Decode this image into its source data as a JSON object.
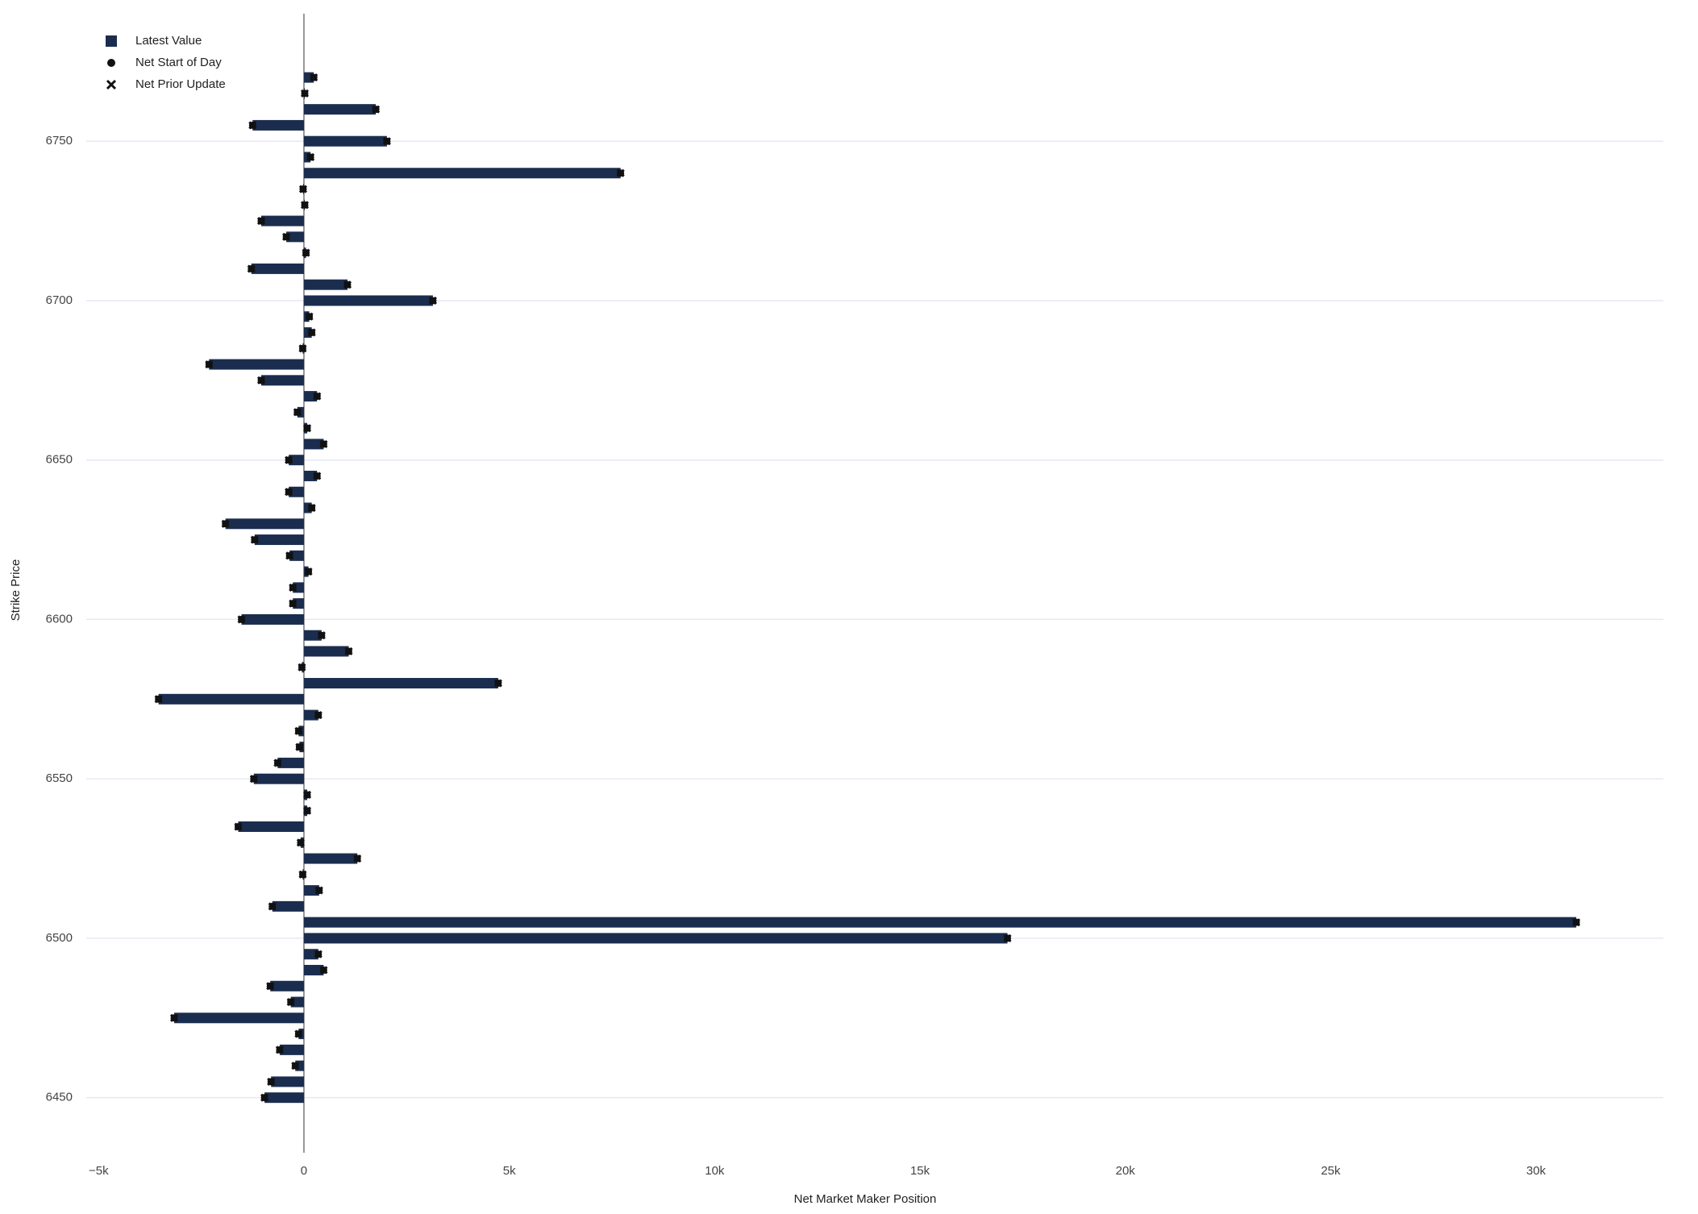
{
  "chart_data": {
    "type": "hbar",
    "x_label": "Net Market Maker Position",
    "y_label": "Strike Price",
    "y": [
      6770,
      6765,
      6760,
      6755,
      6750,
      6745,
      6740,
      6735,
      6730,
      6725,
      6720,
      6715,
      6710,
      6705,
      6700,
      6695,
      6690,
      6685,
      6680,
      6675,
      6670,
      6665,
      6660,
      6655,
      6650,
      6645,
      6640,
      6635,
      6630,
      6625,
      6620,
      6615,
      6610,
      6605,
      6600,
      6595,
      6590,
      6585,
      6580,
      6575,
      6570,
      6565,
      6560,
      6555,
      6550,
      6545,
      6540,
      6535,
      6530,
      6525,
      6520,
      6515,
      6510,
      6505,
      6500,
      6495,
      6490,
      6485,
      6480,
      6475,
      6470,
      6465,
      6460,
      6455,
      6450
    ],
    "series": [
      {
        "name": "Latest Value",
        "marker": "bar",
        "color": "#1b2d4e",
        "values": [
          240,
          20,
          1750,
          -1250,
          2020,
          160,
          7710,
          -20,
          20,
          -1040,
          -430,
          50,
          -1280,
          1060,
          3140,
          130,
          190,
          -30,
          -2310,
          -1040,
          320,
          -160,
          80,
          480,
          -370,
          320,
          -370,
          190,
          -1910,
          -1200,
          -350,
          110,
          -270,
          -270,
          -1520,
          430,
          1090,
          -50,
          4730,
          -3540,
          350,
          -130,
          -110,
          -640,
          -1220,
          80,
          80,
          -1600,
          -80,
          1300,
          -30,
          370,
          -770,
          30980,
          17130,
          350,
          480,
          -820,
          -320,
          -3160,
          -130,
          -590,
          -210,
          -800,
          -960
        ]
      },
      {
        "name": "Net Start of Day",
        "marker": "circle",
        "color": "#111111",
        "values": [
          240,
          20,
          1750,
          -1250,
          2020,
          160,
          7710,
          -20,
          20,
          -1040,
          -430,
          50,
          -1280,
          1060,
          3140,
          130,
          190,
          -30,
          -2310,
          -1040,
          320,
          -160,
          80,
          480,
          -370,
          320,
          -370,
          190,
          -1910,
          -1200,
          -350,
          110,
          -270,
          -270,
          -1520,
          430,
          1090,
          -50,
          4730,
          -3540,
          350,
          -130,
          -110,
          -640,
          -1220,
          80,
          80,
          -1600,
          -80,
          1300,
          -30,
          370,
          -770,
          30980,
          17130,
          350,
          480,
          -820,
          -320,
          -3160,
          -130,
          -590,
          -210,
          -800,
          -960
        ]
      },
      {
        "name": "Net Prior Update",
        "marker": "x",
        "color": "#111111",
        "values": [
          240,
          20,
          1750,
          -1250,
          2020,
          160,
          7710,
          -20,
          20,
          -1040,
          -430,
          50,
          -1280,
          1060,
          3140,
          130,
          190,
          -30,
          -2310,
          -1040,
          320,
          -160,
          80,
          480,
          -370,
          320,
          -370,
          190,
          -1910,
          -1200,
          -350,
          110,
          -270,
          -270,
          -1520,
          430,
          1090,
          -50,
          4730,
          -3540,
          350,
          -130,
          -110,
          -640,
          -1220,
          80,
          80,
          -1600,
          -80,
          1300,
          -30,
          370,
          -770,
          30980,
          17130,
          350,
          480,
          -820,
          -320,
          -3160,
          -130,
          -590,
          -210,
          -800,
          -960
        ]
      }
    ],
    "xlim": [
      -5300,
      33100
    ],
    "xticks": [
      {
        "value": -5000,
        "label": "−5k"
      },
      0,
      {
        "value": 5000,
        "label": "5k"
      },
      {
        "value": 10000,
        "label": "10k"
      },
      {
        "value": 15000,
        "label": "15k"
      },
      {
        "value": 20000,
        "label": "20k"
      },
      {
        "value": 25000,
        "label": "25k"
      },
      {
        "value": 30000,
        "label": "30k"
      }
    ],
    "ylim": [
      6435,
      6790
    ],
    "yticks": [
      6450,
      6500,
      6550,
      6600,
      6650,
      6700,
      6750
    ],
    "grid": true,
    "legend": "top-left"
  }
}
